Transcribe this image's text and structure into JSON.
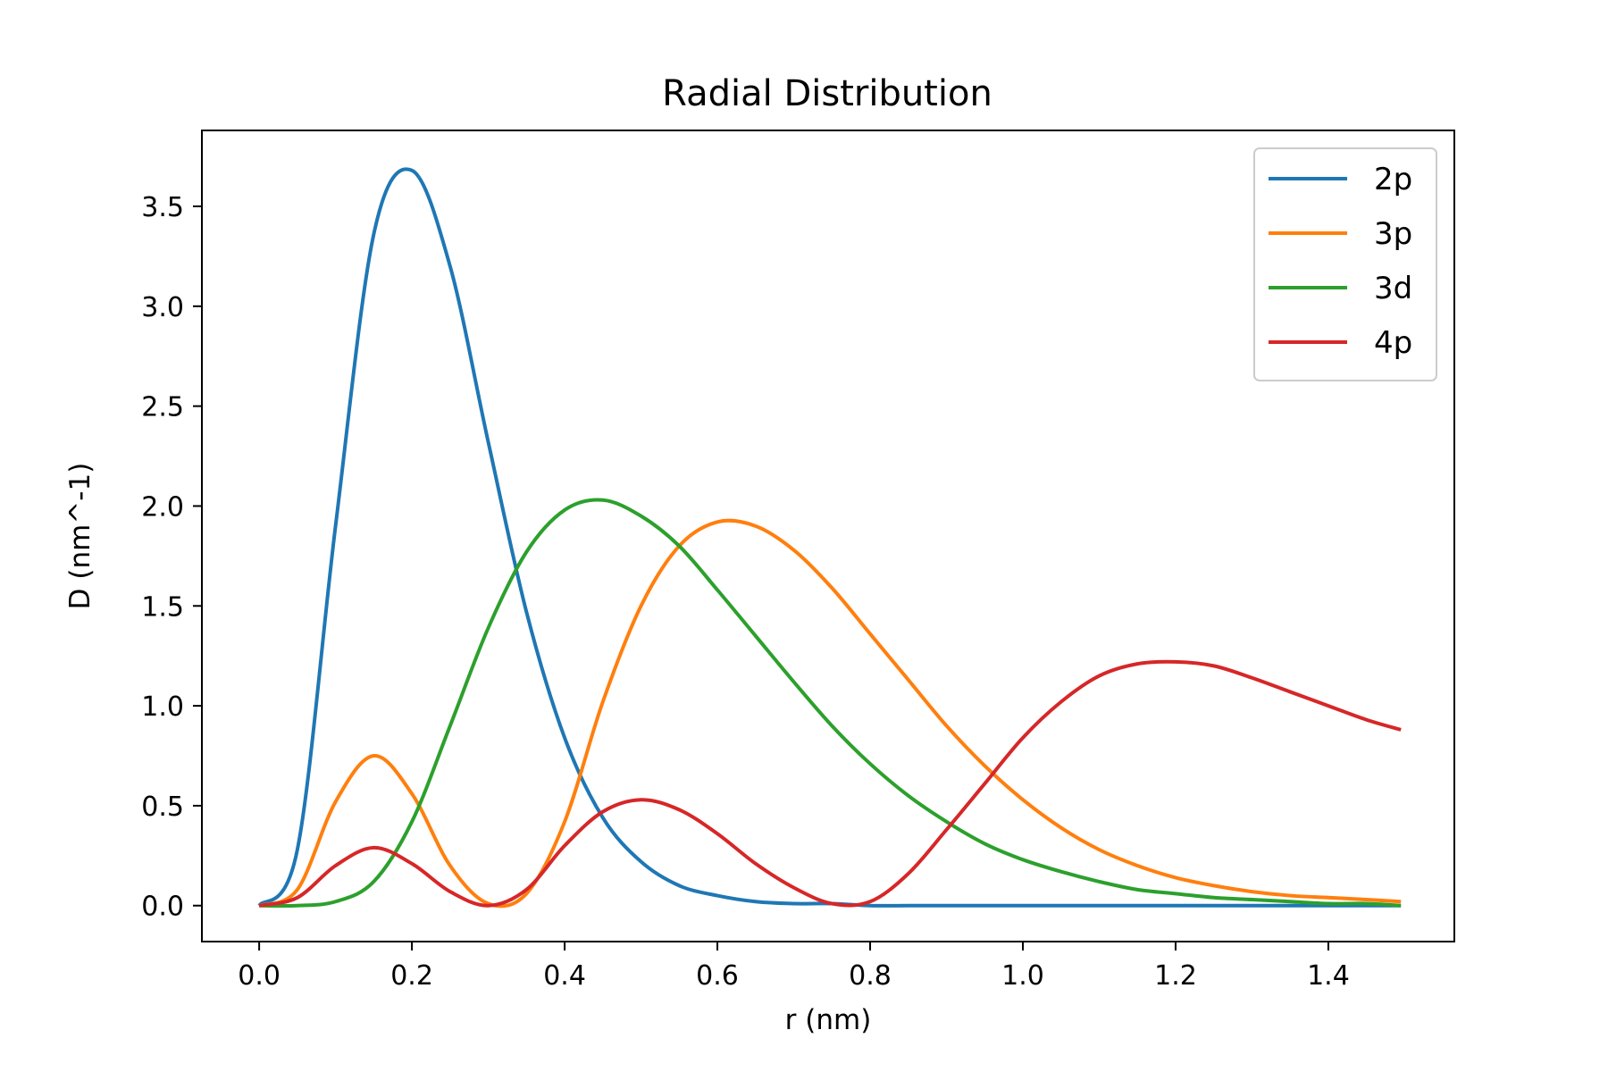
{
  "chart_data": {
    "type": "line",
    "title": "Radial Distribution",
    "xlabel": "r (nm)",
    "ylabel": "D (nm^-1)",
    "xlim": [
      -0.075,
      1.565
    ],
    "ylim": [
      -0.18,
      3.88
    ],
    "xticks": [
      0.0,
      0.2,
      0.4,
      0.6,
      0.8,
      1.0,
      1.2,
      1.4
    ],
    "xtick_labels": [
      "0.0",
      "0.2",
      "0.4",
      "0.6",
      "0.8",
      "1.0",
      "1.2",
      "1.4"
    ],
    "yticks": [
      0.0,
      0.5,
      1.0,
      1.5,
      2.0,
      2.5,
      3.0,
      3.5
    ],
    "ytick_labels": [
      "0.0",
      "0.5",
      "1.0",
      "1.5",
      "2.0",
      "2.5",
      "3.0",
      "3.5"
    ],
    "grid": false,
    "legend_position": "top-right",
    "x": [
      0.0,
      0.05,
      0.1,
      0.15,
      0.2,
      0.25,
      0.3,
      0.35,
      0.4,
      0.45,
      0.5,
      0.55,
      0.6,
      0.65,
      0.7,
      0.75,
      0.8,
      0.85,
      0.9,
      0.95,
      1.0,
      1.05,
      1.1,
      1.15,
      1.2,
      1.25,
      1.3,
      1.35,
      1.4,
      1.45,
      1.495
    ],
    "series": [
      {
        "name": "2p",
        "color": "#1f77b4",
        "values": [
          0.0,
          0.28,
          1.9,
          3.36,
          3.68,
          3.2,
          2.32,
          1.47,
          0.84,
          0.44,
          0.22,
          0.1,
          0.05,
          0.02,
          0.01,
          0.01,
          0.0,
          0.0,
          0.0,
          0.0,
          0.0,
          0.0,
          0.0,
          0.0,
          0.0,
          0.0,
          0.0,
          0.0,
          0.0,
          0.0,
          0.0
        ]
      },
      {
        "name": "3p",
        "color": "#ff7f0e",
        "values": [
          0.0,
          0.08,
          0.52,
          0.75,
          0.56,
          0.2,
          0.01,
          0.06,
          0.42,
          1.02,
          1.5,
          1.8,
          1.92,
          1.9,
          1.78,
          1.59,
          1.36,
          1.13,
          0.9,
          0.7,
          0.53,
          0.39,
          0.28,
          0.2,
          0.14,
          0.1,
          0.07,
          0.05,
          0.04,
          0.03,
          0.02
        ]
      },
      {
        "name": "3d",
        "color": "#2ca02c",
        "values": [
          0.0,
          0.0,
          0.02,
          0.12,
          0.42,
          0.9,
          1.39,
          1.77,
          1.98,
          2.03,
          1.95,
          1.8,
          1.58,
          1.35,
          1.12,
          0.9,
          0.71,
          0.55,
          0.42,
          0.31,
          0.23,
          0.17,
          0.12,
          0.08,
          0.06,
          0.04,
          0.03,
          0.02,
          0.01,
          0.01,
          0.0
        ]
      },
      {
        "name": "4p",
        "color": "#d62728",
        "values": [
          0.0,
          0.04,
          0.2,
          0.29,
          0.21,
          0.07,
          0.0,
          0.08,
          0.3,
          0.47,
          0.53,
          0.48,
          0.36,
          0.21,
          0.09,
          0.01,
          0.02,
          0.16,
          0.38,
          0.61,
          0.84,
          1.02,
          1.15,
          1.21,
          1.22,
          1.2,
          1.14,
          1.07,
          1.0,
          0.93,
          0.88
        ]
      }
    ]
  }
}
